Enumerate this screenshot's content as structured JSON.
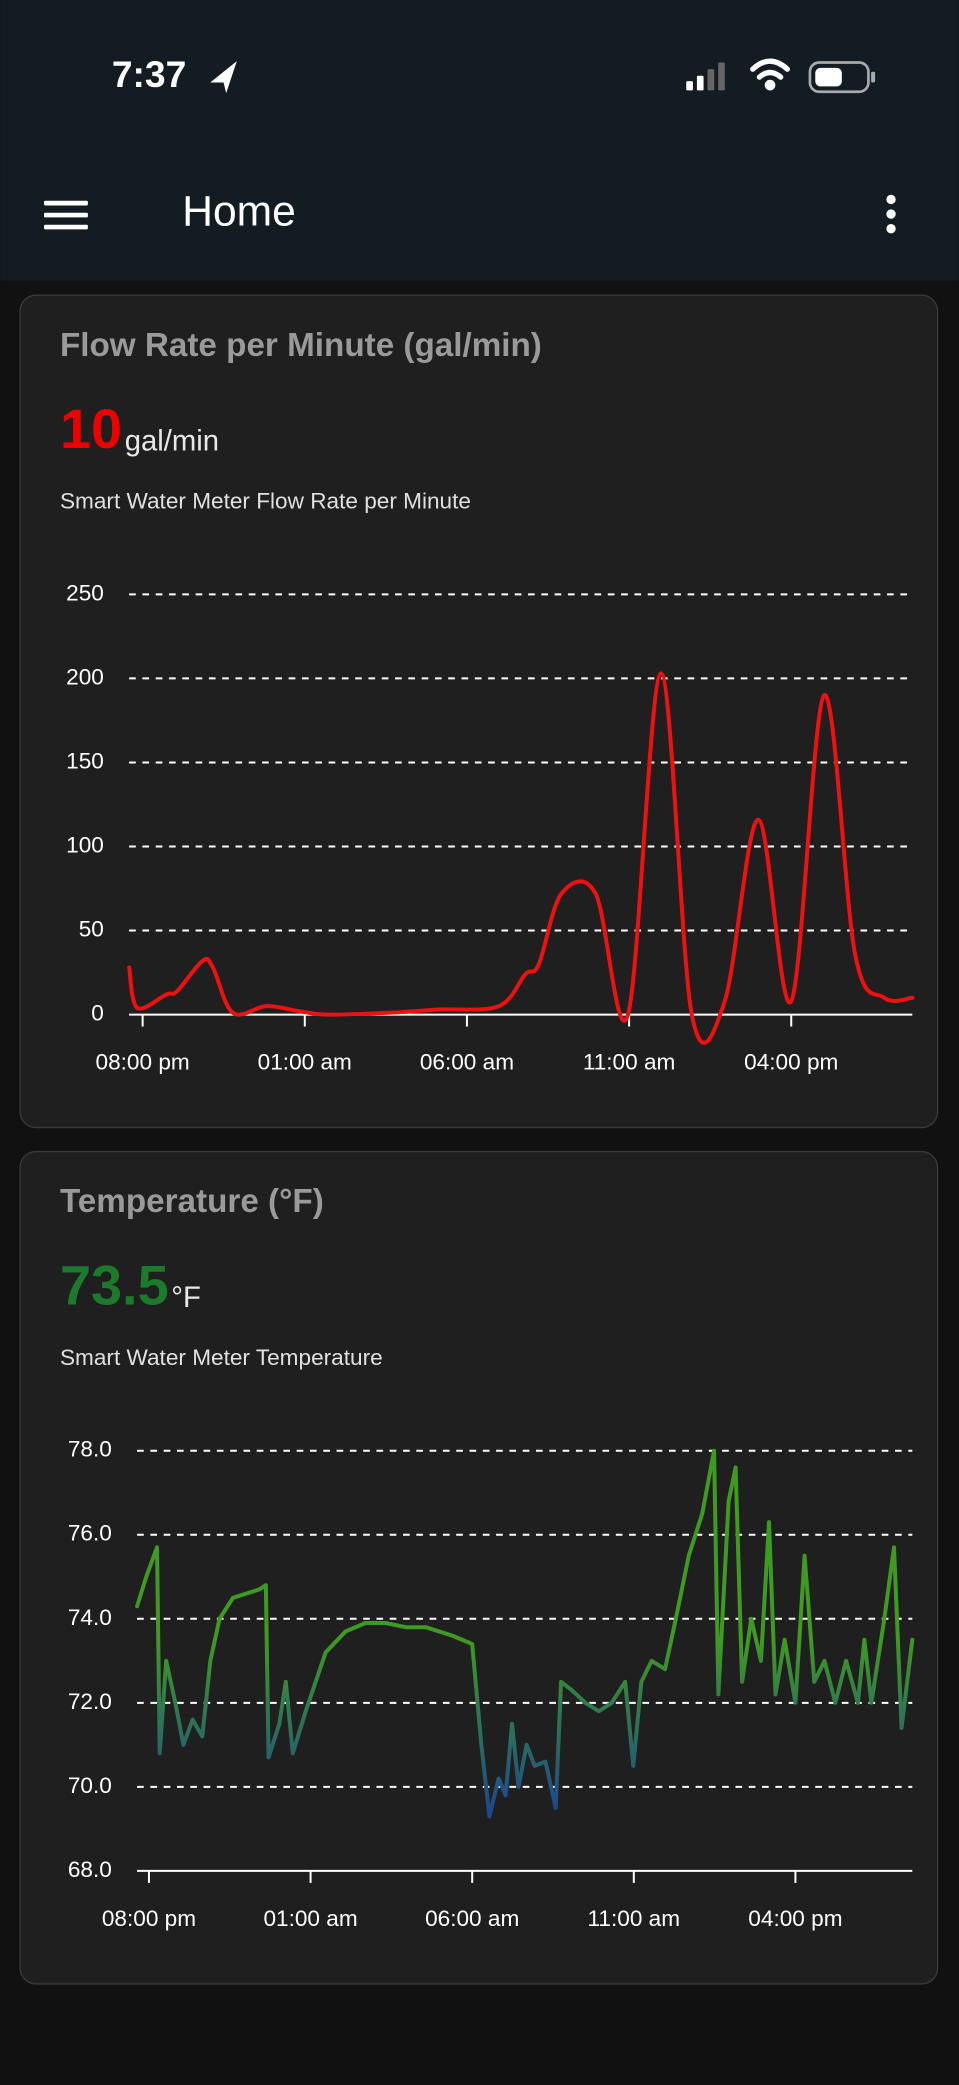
{
  "status_bar": {
    "time": "7:37"
  },
  "app_bar": {
    "title": "Home"
  },
  "chart_data": [
    {
      "type": "line",
      "title": "Flow Rate per Minute (gal/min)",
      "value": 10,
      "unit": "gal/min",
      "value_color": "#ee0000",
      "subtitle": "Smart Water Meter Flow Rate per Minute",
      "smooth": true,
      "color": "#ee1111",
      "x": [
        "07:35 pm",
        "07:50 pm",
        "08:44 pm",
        "09:04 pm",
        "09:51 pm",
        "10:10 pm",
        "10:47 pm",
        "11:49 pm",
        "12:50 am",
        "01:39 am",
        "03:30 am",
        "05:08 am",
        "06:59 am",
        "07:48 am",
        "08:13 am",
        "08:55 am",
        "09:58 am",
        "10:58 am",
        "11:59 am",
        "12:56 pm",
        "01:57 pm",
        "02:59 pm",
        "04:00 pm",
        "05:01 pm",
        "05:58 pm",
        "06:52 pm",
        "07:44 pm"
      ],
      "values": [
        28,
        4,
        12,
        14,
        32,
        28,
        1,
        5,
        2,
        0,
        1,
        3,
        5,
        24,
        30,
        72,
        72,
        0,
        203,
        0,
        8,
        116,
        8,
        190,
        36,
        10,
        10
      ],
      "xlim": [
        "07:35 pm",
        "07:44 pm"
      ],
      "ylim": [
        0,
        250
      ],
      "xticks": [
        "08:00 pm",
        "01:00 am",
        "06:00 am",
        "11:00 am",
        "04:00 pm"
      ],
      "yticks": [
        0,
        50,
        100,
        150,
        200,
        250
      ],
      "grid": true
    },
    {
      "type": "line",
      "title": "Temperature (°F)",
      "value": 73.5,
      "unit": "°F",
      "value_color": "#1c7a2c",
      "subtitle": "Smart Water Meter Temperature",
      "smooth": false,
      "color": "#3f9a22",
      "low_color": "#1d4a8c",
      "x": [
        "07:38 pm",
        "07:55 pm",
        "08:15 pm",
        "08:20 pm",
        "08:32 pm",
        "08:49 pm",
        "09:04 pm",
        "09:21 pm",
        "09:39 pm",
        "09:54 pm",
        "10:11 pm",
        "10:36 pm",
        "11:25 pm",
        "11:37 pm",
        "11:42 pm",
        "12:02 am",
        "12:14 am",
        "12:27 am",
        "12:51 am",
        "01:28 am",
        "02:05 am",
        "02:42 am",
        "03:19 am",
        "03:57 am",
        "04:34 am",
        "05:23 am",
        "06:00 am",
        "06:17 am",
        "06:32 am",
        "06:49 am",
        "07:02 am",
        "07:14 am",
        "07:26 am",
        "07:41 am",
        "07:56 am",
        "08:16 am",
        "08:35 am",
        "08:45 am",
        "09:05 am",
        "09:30 am",
        "09:55 am",
        "10:19 am",
        "10:44 am",
        "10:59 am",
        "11:14 am",
        "11:33 am",
        "11:58 am",
        "12:18 pm",
        "12:42 pm",
        "01:07 pm",
        "01:29 pm",
        "01:37 pm",
        "01:56 pm",
        "02:09 pm",
        "02:21 pm",
        "02:38 pm",
        "02:56 pm",
        "03:11 pm",
        "03:23 pm",
        "03:40 pm",
        "04:00 pm",
        "04:17 pm",
        "04:35 pm",
        "04:54 pm",
        "05:14 pm",
        "05:34 pm",
        "05:56 pm",
        "06:08 pm",
        "06:21 pm",
        "06:45 pm",
        "07:03 pm",
        "07:17 pm",
        "07:37 pm"
      ],
      "values": [
        74.3,
        75.0,
        75.7,
        70.8,
        73.0,
        72.0,
        71.0,
        71.6,
        71.2,
        73.0,
        74.0,
        74.5,
        74.7,
        74.8,
        70.7,
        71.5,
        72.5,
        70.8,
        71.8,
        73.2,
        73.7,
        73.9,
        73.9,
        73.8,
        73.8,
        73.6,
        73.4,
        71.0,
        69.3,
        70.2,
        69.8,
        71.5,
        70.0,
        71.0,
        70.5,
        70.6,
        69.5,
        72.5,
        72.3,
        72.0,
        71.8,
        72.0,
        72.5,
        70.5,
        72.5,
        73.0,
        72.8,
        74.0,
        75.5,
        76.5,
        78.0,
        72.2,
        76.8,
        77.6,
        72.5,
        74.0,
        73.0,
        76.3,
        72.2,
        73.5,
        72.0,
        75.5,
        72.5,
        73.0,
        72.0,
        73.0,
        72.0,
        73.5,
        72.0,
        74.0,
        75.7,
        71.4,
        73.5
      ],
      "xlim": [
        "07:38 pm",
        "07:37 pm"
      ],
      "ylim": [
        68,
        78
      ],
      "xticks": [
        "08:00 pm",
        "01:00 am",
        "06:00 am",
        "11:00 am",
        "04:00 pm"
      ],
      "yticks": [
        {
          "value": 68,
          "label": "68.0"
        },
        {
          "value": 70,
          "label": "70.0"
        },
        {
          "value": 72,
          "label": "72.0"
        },
        {
          "value": 74,
          "label": "74.0"
        },
        {
          "value": 76,
          "label": "76.0"
        },
        {
          "value": 78,
          "label": "78.0"
        }
      ],
      "grid": true
    }
  ]
}
